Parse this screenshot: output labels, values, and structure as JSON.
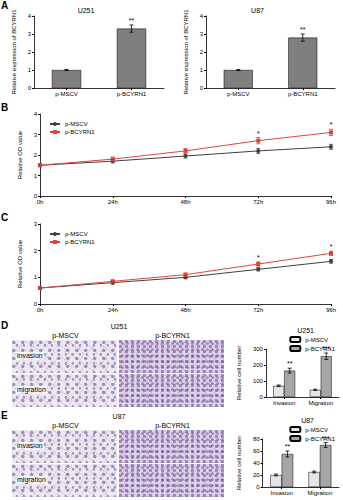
{
  "chart_data": [
    {
      "panel": "A",
      "type": "bar",
      "title": "U251",
      "categories": [
        "p-MSCV",
        "p-BCYRN1"
      ],
      "values": [
        1,
        3.3
      ],
      "errors": [
        0.03,
        0.2
      ],
      "significance": [
        null,
        "**"
      ],
      "colors": [
        "#7f7f7f",
        "#7f7f7f"
      ],
      "y_label": "Relative expression of BCYRN1",
      "ylim": [
        0,
        4
      ],
      "yticks": [
        0,
        1,
        2,
        3,
        4
      ]
    },
    {
      "type": "bar",
      "title": "U87",
      "categories": [
        "p-MSCV",
        "p-BCYRN1"
      ],
      "values": [
        1,
        2.8
      ],
      "errors": [
        0.03,
        0.2
      ],
      "significance": [
        null,
        "**"
      ],
      "colors": [
        "#7f7f7f",
        "#7f7f7f"
      ],
      "y_label": "Relative expression of BCYRN1",
      "ylim": [
        0,
        4
      ],
      "yticks": [
        0,
        1,
        2,
        3,
        4
      ]
    },
    {
      "panel": "B",
      "type": "line",
      "categories": [
        "0h",
        "24h",
        "48h",
        "72h",
        "96h"
      ],
      "y_label": "Relative OD value",
      "ylim": [
        0,
        4
      ],
      "yticks": [
        0,
        1,
        2,
        3,
        4
      ],
      "legend": "top-left",
      "series": [
        {
          "name": "p-MSCV",
          "color": "#404040",
          "marker": "circle",
          "values": [
            1.5,
            1.7,
            1.95,
            2.2,
            2.4
          ],
          "errors": [
            0.05,
            0.08,
            0.1,
            0.12,
            0.12
          ]
        },
        {
          "name": "p-BCYRN1",
          "color": "#e0443e",
          "marker": "square",
          "values": [
            1.5,
            1.8,
            2.2,
            2.7,
            3.1
          ],
          "errors": [
            0.05,
            0.1,
            0.12,
            0.15,
            0.15
          ],
          "significance": [
            null,
            null,
            null,
            "*",
            "*"
          ]
        }
      ]
    },
    {
      "panel": "C",
      "type": "line",
      "categories": [
        "0h",
        "24h",
        "48h",
        "72h",
        "96h"
      ],
      "y_label": "Relative OD value",
      "ylim": [
        0,
        3
      ],
      "yticks": [
        0,
        1,
        2,
        3
      ],
      "legend": "top-left",
      "series": [
        {
          "name": "p-MSCV",
          "color": "#404040",
          "marker": "circle",
          "values": [
            0.6,
            0.8,
            1.0,
            1.3,
            1.6
          ],
          "errors": [
            0.03,
            0.05,
            0.05,
            0.06,
            0.07
          ]
        },
        {
          "name": "p-BCYRN1",
          "color": "#e0443e",
          "marker": "square",
          "values": [
            0.6,
            0.85,
            1.1,
            1.5,
            1.9
          ],
          "errors": [
            0.03,
            0.05,
            0.06,
            0.08,
            0.08
          ],
          "significance": [
            null,
            null,
            null,
            "*",
            "*"
          ]
        }
      ]
    },
    {
      "type": "bar",
      "title": "U251",
      "categories": [
        "Invasion",
        "Migration"
      ],
      "y_label": "Relative cell number",
      "ylim": [
        0,
        300
      ],
      "yticks": [
        0,
        100,
        200,
        300
      ],
      "legend": "top-right",
      "series": [
        {
          "name": "p-MSCV",
          "color": "#e6e6e6",
          "values": [
            70,
            45
          ],
          "errors": [
            5,
            4
          ]
        },
        {
          "name": "p-BCYRN1",
          "color": "#a6a6a6",
          "values": [
            165,
            255
          ],
          "errors": [
            15,
            20
          ],
          "significance": [
            "**",
            "***"
          ]
        }
      ]
    },
    {
      "type": "bar",
      "title": "U87",
      "categories": [
        "Invasion",
        "Migration"
      ],
      "y_label": "Relative cell number",
      "ylim": [
        0,
        80
      ],
      "yticks": [
        0,
        20,
        40,
        60,
        80
      ],
      "legend": "top-right",
      "series": [
        {
          "name": "p-MSCV",
          "color": "#e6e6e6",
          "values": [
            20,
            25
          ],
          "errors": [
            1.5,
            1.5
          ]
        },
        {
          "name": "p-BCYRN1",
          "color": "#a6a6a6",
          "values": [
            55,
            70
          ],
          "errors": [
            5,
            4
          ],
          "significance": [
            "**",
            "***"
          ]
        }
      ]
    }
  ],
  "image_panels": [
    {
      "panel": "D",
      "cell_line": "U251",
      "columns": [
        "p-MSCV",
        "p-BCYRN1"
      ],
      "rows": [
        "invasion",
        "migration"
      ]
    },
    {
      "panel": "E",
      "cell_line": "U87",
      "columns": [
        "p-MSCV",
        "p-BCYRN1"
      ],
      "rows": [
        "invasion",
        "migration"
      ]
    }
  ]
}
